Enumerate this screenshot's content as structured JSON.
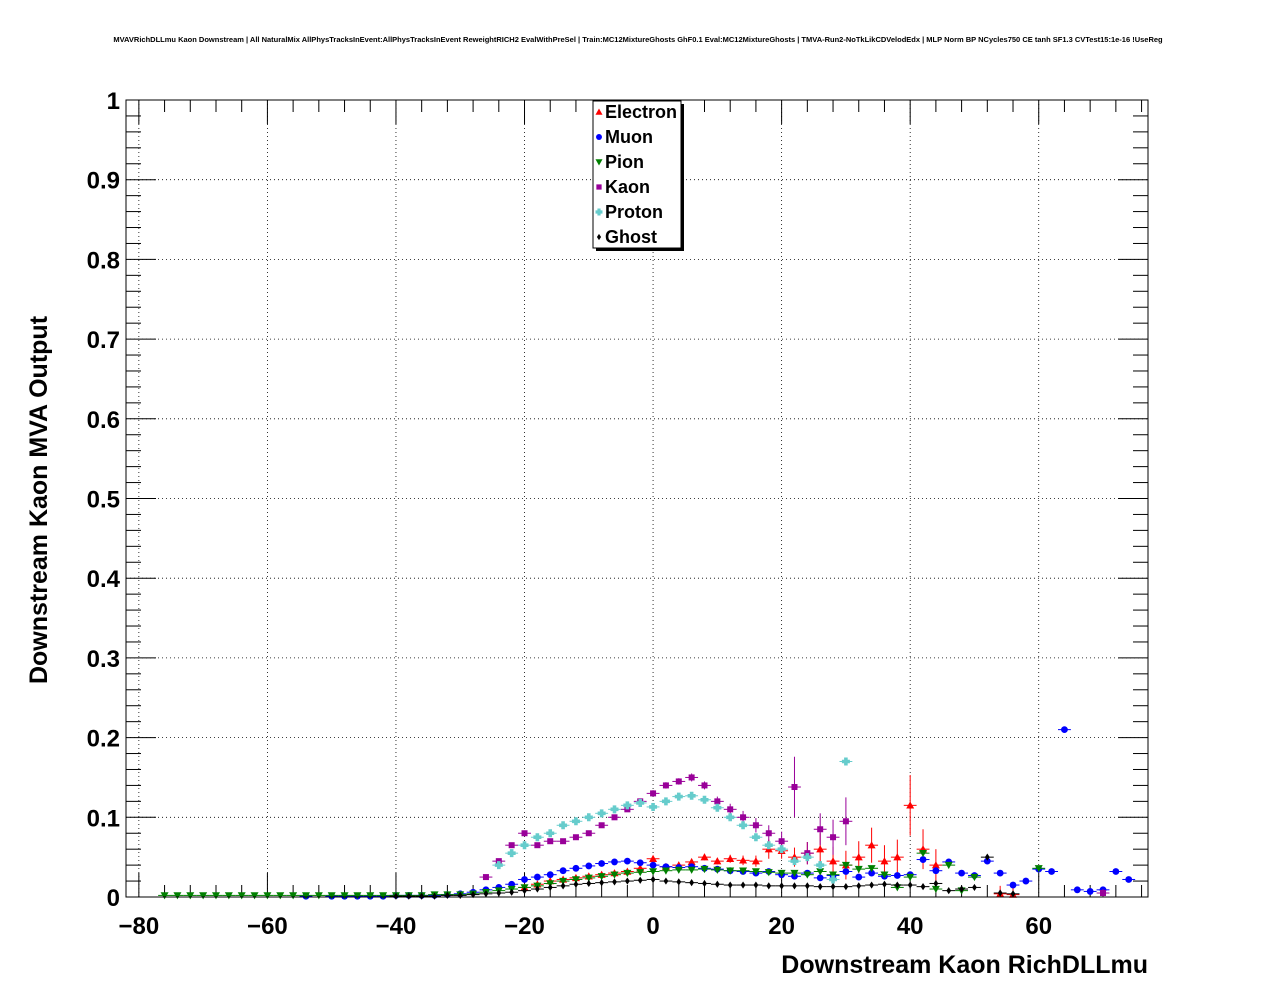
{
  "chart_data": {
    "type": "scatter",
    "title": "MVAVRichDLLmu Kaon Downstream | All NaturalMix AllPhysTracksInEvent:AllPhysTracksInEvent ReweightRICH2 EvalWithPreSel | Train:MC12MixtureGhosts GhF0.1 Eval:MC12MixtureGhosts | TMVA-Run2-NoTkLikCDVelodEdx | MLP Norm BP NCycles750 CE tanh SF1.3 CVTest15:1e-16 !UseReg",
    "xlabel": "Downstream Kaon RichDLLmu",
    "ylabel": "Downstream Kaon MVA Output",
    "xlim": [
      -82,
      77
    ],
    "ylim": [
      0,
      1
    ],
    "x_ticks": [
      -80,
      -60,
      -40,
      -20,
      0,
      20,
      40,
      60
    ],
    "x_tick_labels": [
      "−80",
      "−60",
      "−40",
      "−20",
      "0",
      "20",
      "40",
      "60"
    ],
    "y_ticks": [
      0,
      0.1,
      0.2,
      0.3,
      0.4,
      0.5,
      0.6,
      0.7,
      0.8,
      0.9,
      1
    ],
    "y_tick_labels": [
      "0",
      "0.1",
      "0.2",
      "0.3",
      "0.4",
      "0.5",
      "0.6",
      "0.7",
      "0.8",
      "0.9",
      "1"
    ],
    "grid": true,
    "legend_position": "top-center",
    "series": [
      {
        "name": "Electron",
        "color": "#ff0000",
        "marker": "triangle-up",
        "x": [
          -20,
          -18,
          -16,
          -14,
          -12,
          -10,
          -8,
          -6,
          -4,
          -2,
          0,
          2,
          4,
          6,
          8,
          10,
          12,
          14,
          16,
          18,
          20,
          22,
          24,
          26,
          28,
          30,
          32,
          34,
          36,
          38,
          40,
          42,
          44,
          54,
          56
        ],
        "y": [
          0.012,
          0.016,
          0.02,
          0.022,
          0.024,
          0.026,
          0.028,
          0.03,
          0.032,
          0.036,
          0.048,
          0.038,
          0.04,
          0.044,
          0.05,
          0.045,
          0.048,
          0.046,
          0.045,
          0.06,
          0.058,
          0.05,
          0.055,
          0.06,
          0.045,
          0.04,
          0.05,
          0.065,
          0.045,
          0.05,
          0.115,
          0.06,
          0.04,
          0.004,
          0.003
        ],
        "err": [
          0.002,
          0.002,
          0.002,
          0.002,
          0.002,
          0.002,
          0.002,
          0.002,
          0.002,
          0.002,
          0.003,
          0.002,
          0.002,
          0.003,
          0.004,
          0.004,
          0.005,
          0.006,
          0.007,
          0.012,
          0.01,
          0.012,
          0.014,
          0.02,
          0.018,
          0.018,
          0.02,
          0.022,
          0.02,
          0.022,
          0.038,
          0.025,
          0.02,
          0.01,
          0.01
        ]
      },
      {
        "name": "Muon",
        "color": "#0000ff",
        "marker": "circle",
        "x": [
          -54,
          -50,
          -48,
          -46,
          -44,
          -42,
          -40,
          -38,
          -36,
          -34,
          -32,
          -30,
          -28,
          -26,
          -24,
          -22,
          -20,
          -18,
          -16,
          -14,
          -12,
          -10,
          -8,
          -6,
          -4,
          -2,
          0,
          2,
          4,
          6,
          8,
          10,
          12,
          14,
          16,
          18,
          20,
          22,
          24,
          26,
          28,
          30,
          32,
          34,
          36,
          38,
          40,
          42,
          44,
          46,
          48,
          50,
          52,
          54,
          56,
          58,
          60,
          62,
          64,
          66,
          68,
          70,
          72,
          74
        ],
        "y": [
          0.001,
          0.001,
          0.001,
          0.001,
          0.001,
          0.001,
          0.002,
          0.002,
          0.002,
          0.002,
          0.003,
          0.004,
          0.006,
          0.009,
          0.012,
          0.016,
          0.022,
          0.025,
          0.028,
          0.033,
          0.036,
          0.039,
          0.042,
          0.044,
          0.045,
          0.043,
          0.04,
          0.038,
          0.037,
          0.038,
          0.036,
          0.035,
          0.033,
          0.032,
          0.03,
          0.032,
          0.028,
          0.026,
          0.03,
          0.024,
          0.027,
          0.032,
          0.025,
          0.03,
          0.026,
          0.027,
          0.028,
          0.047,
          0.033,
          0.044,
          0.03,
          0.027,
          0.045,
          0.03,
          0.015,
          0.02,
          0.035,
          0.032,
          0.21,
          0.009,
          0.007,
          0.009,
          0.032,
          0.022
        ]
      },
      {
        "name": "Pion",
        "color": "#008000",
        "marker": "triangle-down",
        "x": [
          -76,
          -74,
          -72,
          -70,
          -68,
          -66,
          -64,
          -62,
          -60,
          -58,
          -56,
          -54,
          -52,
          -50,
          -48,
          -46,
          -44,
          -42,
          -40,
          -38,
          -36,
          -34,
          -32,
          -30,
          -28,
          -26,
          -24,
          -22,
          -20,
          -18,
          -16,
          -14,
          -12,
          -10,
          -8,
          -6,
          -4,
          -2,
          0,
          2,
          4,
          6,
          8,
          10,
          12,
          14,
          16,
          18,
          20,
          22,
          24,
          26,
          28,
          30,
          32,
          34,
          36,
          38,
          40,
          42,
          44,
          46,
          48,
          50,
          60
        ],
        "y": [
          0.002,
          0.002,
          0.002,
          0.002,
          0.002,
          0.002,
          0.002,
          0.002,
          0.002,
          0.002,
          0.002,
          0.002,
          0.002,
          0.002,
          0.002,
          0.002,
          0.002,
          0.002,
          0.002,
          0.002,
          0.002,
          0.003,
          0.003,
          0.003,
          0.004,
          0.006,
          0.008,
          0.01,
          0.012,
          0.014,
          0.017,
          0.02,
          0.022,
          0.024,
          0.026,
          0.028,
          0.03,
          0.031,
          0.032,
          0.033,
          0.034,
          0.034,
          0.035,
          0.034,
          0.033,
          0.033,
          0.032,
          0.031,
          0.03,
          0.03,
          0.028,
          0.032,
          0.028,
          0.04,
          0.035,
          0.036,
          0.028,
          0.012,
          0.025,
          0.055,
          0.01,
          0.04,
          0.008,
          0.025,
          0.036
        ]
      },
      {
        "name": "Kaon",
        "color": "#990099",
        "marker": "square",
        "x": [
          -26,
          -24,
          -22,
          -20,
          -18,
          -16,
          -14,
          -12,
          -10,
          -8,
          -6,
          -4,
          -2,
          0,
          2,
          4,
          6,
          8,
          10,
          12,
          14,
          16,
          18,
          20,
          22,
          24,
          26,
          28,
          30,
          70
        ],
        "y": [
          0.025,
          0.045,
          0.065,
          0.08,
          0.065,
          0.07,
          0.07,
          0.075,
          0.08,
          0.09,
          0.1,
          0.11,
          0.12,
          0.13,
          0.14,
          0.145,
          0.15,
          0.14,
          0.12,
          0.11,
          0.1,
          0.09,
          0.08,
          0.07,
          0.138,
          0.055,
          0.085,
          0.075,
          0.095,
          0.005
        ],
        "err": [
          0.002,
          0.002,
          0.002,
          0.002,
          0.002,
          0.002,
          0.002,
          0.002,
          0.002,
          0.002,
          0.003,
          0.003,
          0.003,
          0.004,
          0.004,
          0.004,
          0.005,
          0.005,
          0.006,
          0.007,
          0.008,
          0.009,
          0.01,
          0.012,
          0.038,
          0.014,
          0.02,
          0.022,
          0.03,
          0.005
        ]
      },
      {
        "name": "Proton",
        "color": "#66cccc",
        "marker": "cross",
        "x": [
          -24,
          -22,
          -20,
          -18,
          -16,
          -14,
          -12,
          -10,
          -8,
          -6,
          -4,
          -2,
          0,
          2,
          4,
          6,
          8,
          10,
          12,
          14,
          16,
          18,
          20,
          22,
          24,
          26,
          28,
          30
        ],
        "y": [
          0.04,
          0.055,
          0.065,
          0.075,
          0.08,
          0.09,
          0.095,
          0.1,
          0.105,
          0.11,
          0.115,
          0.118,
          0.113,
          0.12,
          0.126,
          0.127,
          0.122,
          0.112,
          0.1,
          0.09,
          0.075,
          0.065,
          0.06,
          0.045,
          0.05,
          0.04,
          0.022,
          0.17
        ]
      },
      {
        "name": "Ghost",
        "color": "#000000",
        "marker": "diamond",
        "x": [
          -40,
          -38,
          -36,
          -34,
          -32,
          -30,
          -28,
          -26,
          -24,
          -22,
          -20,
          -18,
          -16,
          -14,
          -12,
          -10,
          -8,
          -6,
          -4,
          -2,
          0,
          2,
          4,
          6,
          8,
          10,
          12,
          14,
          16,
          18,
          20,
          22,
          24,
          26,
          28,
          30,
          32,
          34,
          36,
          38,
          40,
          42,
          44,
          46,
          48,
          50,
          52,
          54,
          56
        ],
        "y": [
          0.001,
          0.001,
          0.001,
          0.001,
          0.002,
          0.002,
          0.003,
          0.004,
          0.005,
          0.006,
          0.008,
          0.01,
          0.012,
          0.014,
          0.016,
          0.017,
          0.018,
          0.019,
          0.02,
          0.021,
          0.022,
          0.02,
          0.019,
          0.018,
          0.017,
          0.016,
          0.015,
          0.015,
          0.015,
          0.014,
          0.014,
          0.014,
          0.014,
          0.013,
          0.013,
          0.013,
          0.014,
          0.015,
          0.016,
          0.015,
          0.015,
          0.013,
          0.017,
          0.008,
          0.01,
          0.012,
          0.05,
          0.005,
          0.004
        ]
      }
    ]
  }
}
